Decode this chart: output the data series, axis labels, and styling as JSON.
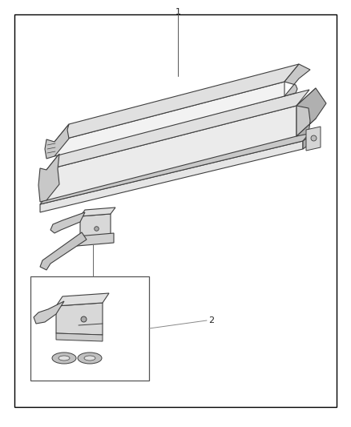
{
  "fig_width": 4.38,
  "fig_height": 5.33,
  "dpi": 100,
  "bg_color": "#ffffff",
  "border_color": "#000000",
  "border_lw": 1.0,
  "label1_text": "1",
  "label2_text": "2",
  "line_color": "#404040",
  "light_fill": "#f2f2f2",
  "mid_fill": "#e0e0e0",
  "dark_fill": "#c8c8c8",
  "darker_fill": "#b0b0b0"
}
